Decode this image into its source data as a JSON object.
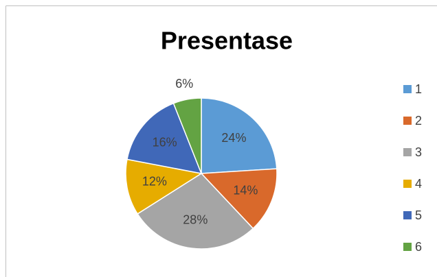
{
  "chart_data": {
    "type": "pie",
    "title": "Presentase",
    "categories": [
      "1",
      "2",
      "3",
      "4",
      "5",
      "6"
    ],
    "values": [
      24,
      14,
      28,
      12,
      16,
      6
    ],
    "value_labels": [
      "24%",
      "14%",
      "28%",
      "12%",
      "16%",
      "6%"
    ],
    "colors": [
      "#5b9bd5",
      "#d9692b",
      "#a5a5a5",
      "#e6ac00",
      "#4068b8",
      "#63a343"
    ],
    "legend": "right"
  }
}
